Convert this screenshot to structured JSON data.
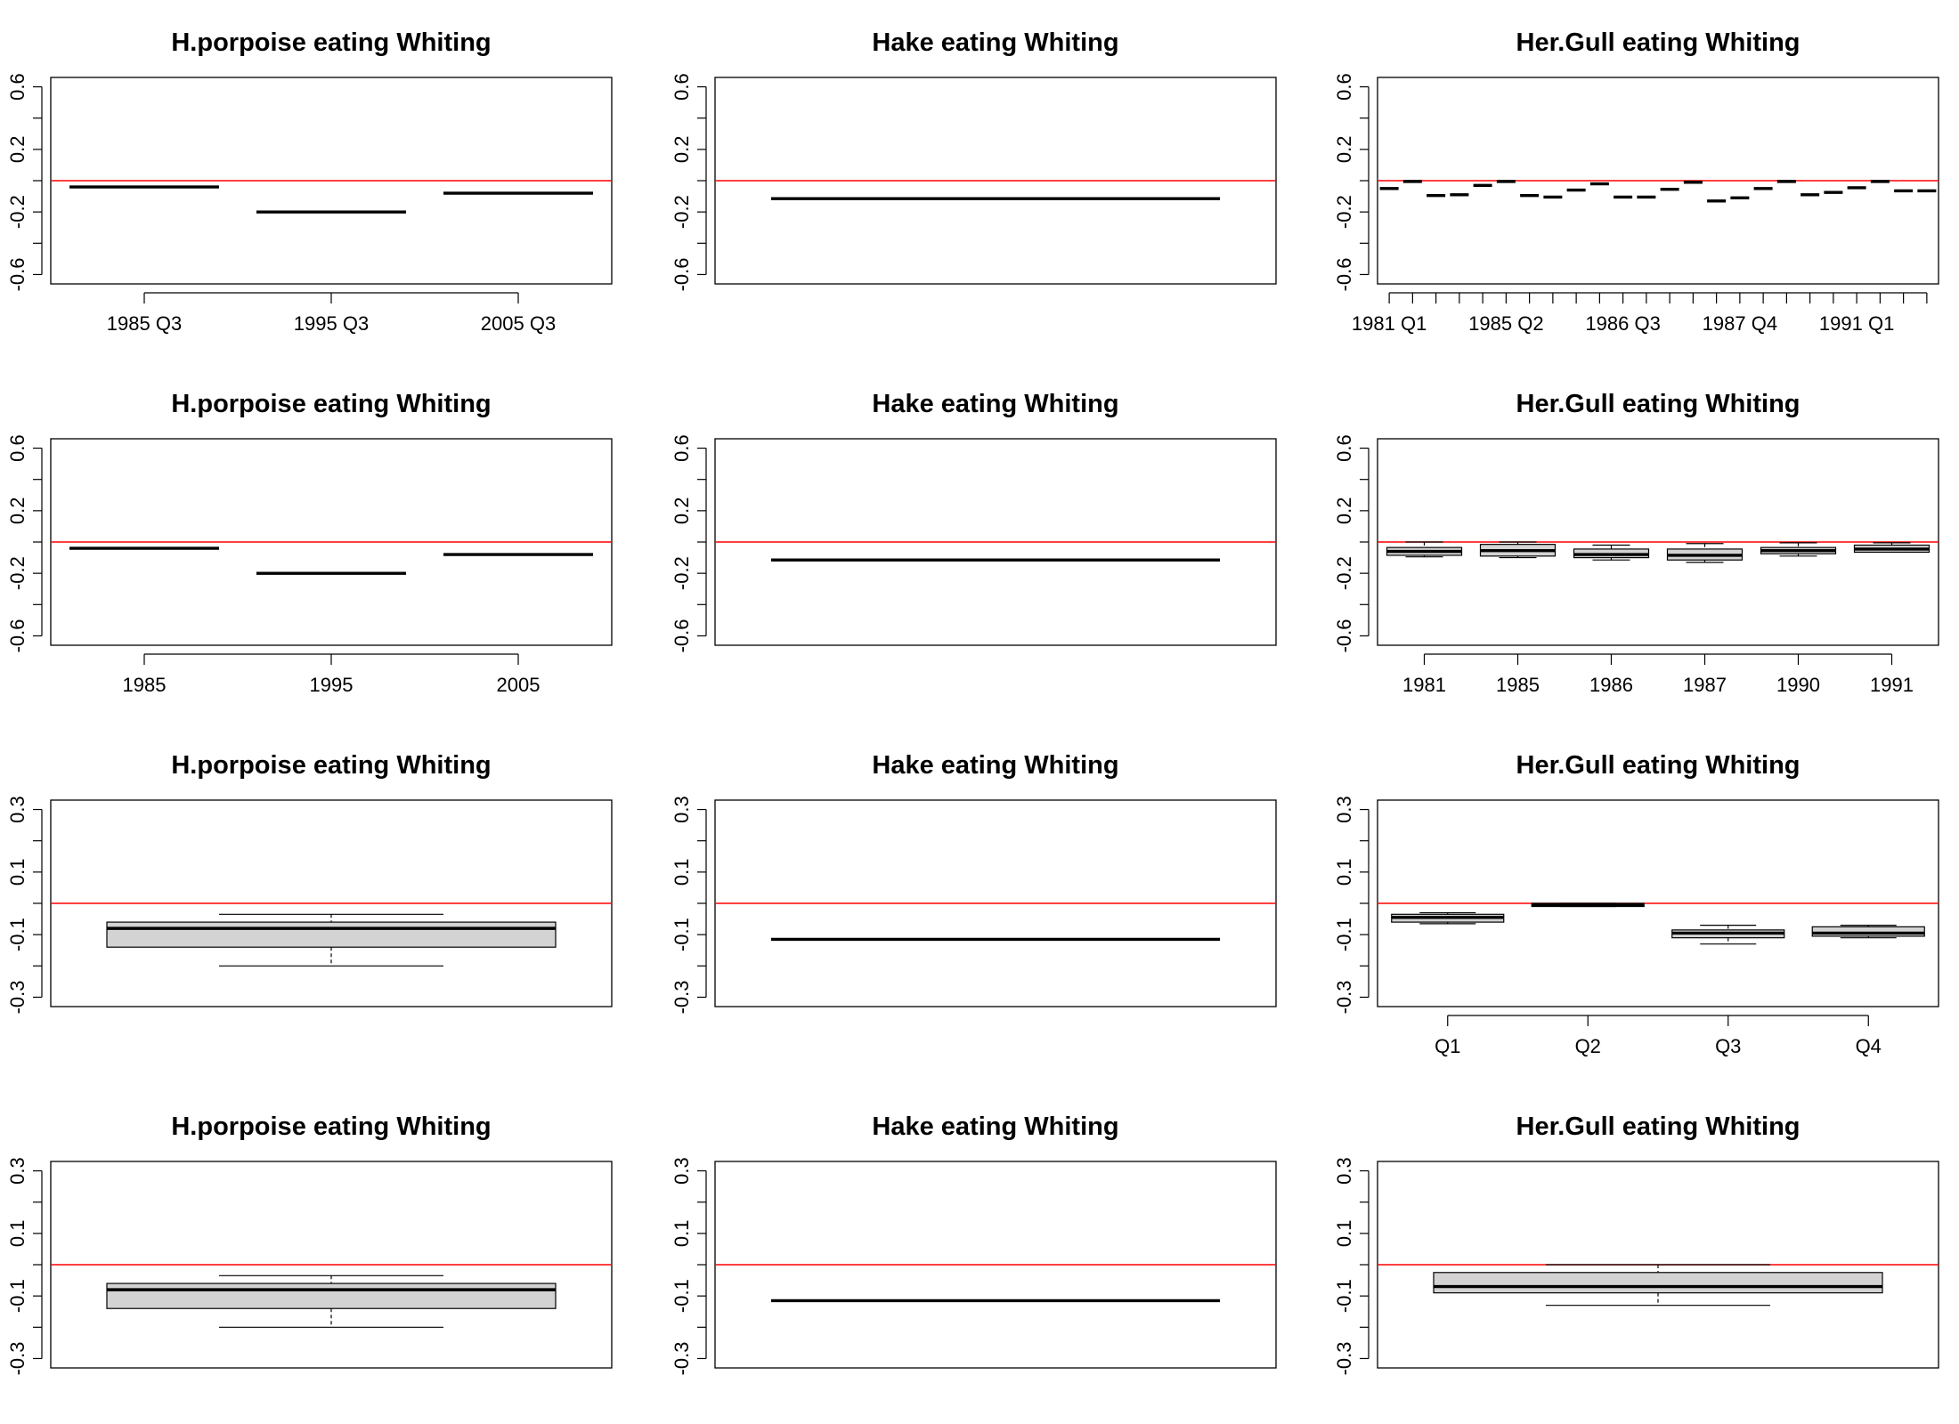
{
  "chart_data": [
    {
      "type": "box",
      "title": "H.porpoise eating Whiting",
      "ylim": [
        -0.66,
        0.66
      ],
      "yticks": [
        -0.6,
        -0.4,
        -0.2,
        0.0,
        0.2,
        0.4,
        0.6
      ],
      "ytick_labels": [
        "-0.6",
        "",
        "-0.2",
        "",
        "0.2",
        "",
        "0.6"
      ],
      "reference_line": 0,
      "categories": [
        "1985 Q3",
        "1995 Q3",
        "2005 Q3"
      ],
      "xtick_labels": [
        "1985 Q3",
        "1995 Q3",
        "2005 Q3"
      ],
      "boxes": [
        {
          "median": -0.04
        },
        {
          "median": -0.2
        },
        {
          "median": -0.08
        }
      ]
    },
    {
      "type": "box",
      "title": "Hake eating Whiting",
      "ylim": [
        -0.66,
        0.66
      ],
      "yticks": [
        -0.6,
        -0.4,
        -0.2,
        0.0,
        0.2,
        0.4,
        0.6
      ],
      "ytick_labels": [
        "-0.6",
        "",
        "-0.2",
        "",
        "0.2",
        "",
        "0.6"
      ],
      "reference_line": 0,
      "categories": [
        ""
      ],
      "xtick_labels": [],
      "boxes": [
        {
          "median": -0.115
        }
      ]
    },
    {
      "type": "box",
      "title": "Her.Gull eating Whiting",
      "ylim": [
        -0.66,
        0.66
      ],
      "yticks": [
        -0.6,
        -0.4,
        -0.2,
        0.0,
        0.2,
        0.4,
        0.6
      ],
      "ytick_labels": [
        "-0.6",
        "",
        "-0.2",
        "",
        "0.2",
        "",
        "0.6"
      ],
      "reference_line": 0,
      "categories": [
        "1981 Q1",
        "",
        "",
        "",
        "",
        "1985 Q2",
        "",
        "",
        "",
        "",
        "1986 Q3",
        "",
        "",
        "",
        "",
        "1987 Q4",
        "",
        "",
        "",
        "",
        "1991 Q1",
        "",
        "",
        ""
      ],
      "xtick_labels": [
        "1981 Q1",
        "",
        "",
        "",
        "",
        "1985 Q2",
        "",
        "",
        "",
        "",
        "1986 Q3",
        "",
        "",
        "",
        "",
        "1987 Q4",
        "",
        "",
        "",
        "",
        "1991 Q1",
        "",
        "",
        ""
      ],
      "boxes": [
        {
          "median": -0.05
        },
        {
          "median": -0.005
        },
        {
          "median": -0.095
        },
        {
          "median": -0.09
        },
        {
          "median": -0.03
        },
        {
          "median": -0.005
        },
        {
          "median": -0.095
        },
        {
          "median": -0.105
        },
        {
          "median": -0.06
        },
        {
          "median": -0.02
        },
        {
          "median": -0.105
        },
        {
          "median": -0.105
        },
        {
          "median": -0.055
        },
        {
          "median": -0.01
        },
        {
          "median": -0.13
        },
        {
          "median": -0.11
        },
        {
          "median": -0.05
        },
        {
          "median": -0.005
        },
        {
          "median": -0.09
        },
        {
          "median": -0.075
        },
        {
          "median": -0.045
        },
        {
          "median": -0.005
        },
        {
          "median": -0.065
        },
        {
          "median": -0.065
        }
      ]
    },
    {
      "type": "box",
      "title": "H.porpoise eating Whiting",
      "ylim": [
        -0.66,
        0.66
      ],
      "yticks": [
        -0.6,
        -0.4,
        -0.2,
        0.0,
        0.2,
        0.4,
        0.6
      ],
      "ytick_labels": [
        "-0.6",
        "",
        "-0.2",
        "",
        "0.2",
        "",
        "0.6"
      ],
      "reference_line": 0,
      "categories": [
        "1985",
        "1995",
        "2005"
      ],
      "xtick_labels": [
        "1985",
        "1995",
        "2005"
      ],
      "boxes": [
        {
          "median": -0.04
        },
        {
          "median": -0.2
        },
        {
          "median": -0.08
        }
      ]
    },
    {
      "type": "box",
      "title": "Hake eating Whiting",
      "ylim": [
        -0.66,
        0.66
      ],
      "yticks": [
        -0.6,
        -0.4,
        -0.2,
        0.0,
        0.2,
        0.4,
        0.6
      ],
      "ytick_labels": [
        "-0.6",
        "",
        "-0.2",
        "",
        "0.2",
        "",
        "0.6"
      ],
      "reference_line": 0,
      "categories": [
        ""
      ],
      "xtick_labels": [],
      "boxes": [
        {
          "median": -0.115
        }
      ]
    },
    {
      "type": "box",
      "title": "Her.Gull eating Whiting",
      "ylim": [
        -0.66,
        0.66
      ],
      "yticks": [
        -0.6,
        -0.4,
        -0.2,
        0.0,
        0.2,
        0.4,
        0.6
      ],
      "ytick_labels": [
        "-0.6",
        "",
        "-0.2",
        "",
        "0.2",
        "",
        "0.6"
      ],
      "reference_line": 0,
      "categories": [
        "1981",
        "1985",
        "1986",
        "1987",
        "1990",
        "1991"
      ],
      "xtick_labels": [
        "1981",
        "1985",
        "1986",
        "1987",
        "1990",
        "1991"
      ],
      "boxes": [
        {
          "min": -0.095,
          "q1": -0.085,
          "median": -0.06,
          "q3": -0.035,
          "max": 0.0
        },
        {
          "min": -0.1,
          "q1": -0.09,
          "median": -0.055,
          "q3": -0.015,
          "max": 0.0
        },
        {
          "min": -0.115,
          "q1": -0.1,
          "median": -0.08,
          "q3": -0.045,
          "max": -0.02
        },
        {
          "min": -0.13,
          "q1": -0.115,
          "median": -0.085,
          "q3": -0.045,
          "max": -0.01
        },
        {
          "min": -0.09,
          "q1": -0.075,
          "median": -0.055,
          "q3": -0.035,
          "max": -0.005
        },
        {
          "min": -0.065,
          "q1": -0.065,
          "median": -0.045,
          "q3": -0.02,
          "max": -0.005
        }
      ]
    },
    {
      "type": "box",
      "title": "H.porpoise eating Whiting",
      "ylim": [
        -0.33,
        0.33
      ],
      "yticks": [
        -0.3,
        -0.2,
        -0.1,
        0.0,
        0.1,
        0.2,
        0.3
      ],
      "ytick_labels": [
        "-0.3",
        "",
        "-0.1",
        "",
        "0.1",
        "",
        "0.3"
      ],
      "reference_line": 0,
      "categories": [
        ""
      ],
      "xtick_labels": [],
      "boxes": [
        {
          "min": -0.2,
          "q1": -0.14,
          "median": -0.08,
          "q3": -0.06,
          "max": -0.035
        }
      ]
    },
    {
      "type": "box",
      "title": "Hake eating Whiting",
      "ylim": [
        -0.33,
        0.33
      ],
      "yticks": [
        -0.3,
        -0.2,
        -0.1,
        0.0,
        0.1,
        0.2,
        0.3
      ],
      "ytick_labels": [
        "-0.3",
        "",
        "-0.1",
        "",
        "0.1",
        "",
        "0.3"
      ],
      "reference_line": 0,
      "categories": [
        ""
      ],
      "xtick_labels": [],
      "boxes": [
        {
          "median": -0.115
        }
      ]
    },
    {
      "type": "box",
      "title": "Her.Gull eating Whiting",
      "ylim": [
        -0.33,
        0.33
      ],
      "yticks": [
        -0.3,
        -0.2,
        -0.1,
        0.0,
        0.1,
        0.2,
        0.3
      ],
      "ytick_labels": [
        "-0.3",
        "",
        "-0.1",
        "",
        "0.1",
        "",
        "0.3"
      ],
      "reference_line": 0,
      "categories": [
        "Q1",
        "Q2",
        "Q3",
        "Q4"
      ],
      "xtick_labels": [
        "Q1",
        "Q2",
        "Q3",
        "Q4"
      ],
      "boxes": [
        {
          "min": -0.065,
          "q1": -0.06,
          "median": -0.045,
          "q3": -0.035,
          "max": -0.03
        },
        {
          "min": -0.01,
          "q1": -0.01,
          "median": -0.005,
          "q3": 0.0,
          "max": 0.0
        },
        {
          "min": -0.13,
          "q1": -0.11,
          "median": -0.095,
          "q3": -0.085,
          "max": -0.07
        },
        {
          "min": -0.11,
          "q1": -0.105,
          "median": -0.095,
          "q3": -0.075,
          "max": -0.07
        }
      ]
    },
    {
      "type": "box",
      "title": "H.porpoise eating Whiting",
      "ylim": [
        -0.33,
        0.33
      ],
      "yticks": [
        -0.3,
        -0.2,
        -0.1,
        0.0,
        0.1,
        0.2,
        0.3
      ],
      "ytick_labels": [
        "-0.3",
        "",
        "-0.1",
        "",
        "0.1",
        "",
        "0.3"
      ],
      "reference_line": 0,
      "categories": [
        ""
      ],
      "xtick_labels": [],
      "boxes": [
        {
          "min": -0.2,
          "q1": -0.14,
          "median": -0.08,
          "q3": -0.06,
          "max": -0.035
        }
      ]
    },
    {
      "type": "box",
      "title": "Hake eating Whiting",
      "ylim": [
        -0.33,
        0.33
      ],
      "yticks": [
        -0.3,
        -0.2,
        -0.1,
        0.0,
        0.1,
        0.2,
        0.3
      ],
      "ytick_labels": [
        "-0.3",
        "",
        "-0.1",
        "",
        "0.1",
        "",
        "0.3"
      ],
      "reference_line": 0,
      "categories": [
        ""
      ],
      "xtick_labels": [],
      "boxes": [
        {
          "median": -0.115
        }
      ]
    },
    {
      "type": "box",
      "title": "Her.Gull eating Whiting",
      "ylim": [
        -0.33,
        0.33
      ],
      "yticks": [
        -0.3,
        -0.2,
        -0.1,
        0.0,
        0.1,
        0.2,
        0.3
      ],
      "ytick_labels": [
        "-0.3",
        "",
        "-0.1",
        "",
        "0.1",
        "",
        "0.3"
      ],
      "reference_line": 0,
      "categories": [
        ""
      ],
      "xtick_labels": [],
      "boxes": [
        {
          "min": -0.13,
          "q1": -0.09,
          "median": -0.07,
          "q3": -0.025,
          "max": 0.0
        }
      ]
    }
  ],
  "colors": {
    "reference_line": "#ff0000",
    "box_fill": "#d3d3d3",
    "ink": "#000000",
    "background": "#ffffff"
  }
}
